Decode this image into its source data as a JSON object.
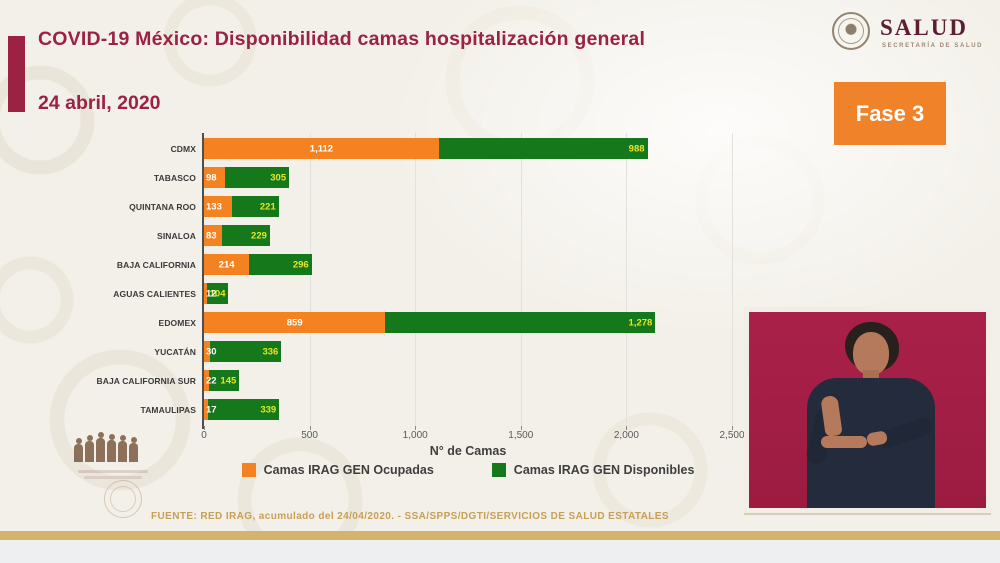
{
  "header": {
    "title": "COVID-19 México: Disponibilidad camas hospitalización general",
    "date": "24 abril, 2020",
    "phase_badge": "Fase 3",
    "logo": {
      "name": "SALUD",
      "subtitle": "SECRETARÍA DE SALUD"
    }
  },
  "chart_data": {
    "type": "bar",
    "orientation": "horizontal",
    "stacked": true,
    "categories": [
      "CDMX",
      "TABASCO",
      "QUINTANA ROO",
      "SINALOA",
      "BAJA CALIFORNIA",
      "AGUAS CALIENTES",
      "EDOMEX",
      "YUCATÁN",
      "BAJA CALIFORNIA SUR",
      "TAMAULIPAS"
    ],
    "series": [
      {
        "name": "Camas IRAG GEN Ocupadas",
        "color": "#F58220",
        "values": [
          1112,
          98,
          133,
          83,
          214,
          12,
          859,
          30,
          22,
          17
        ],
        "labels": [
          "1,112",
          "98",
          "133",
          "83",
          "214",
          "12",
          "859",
          "30",
          "22",
          "17"
        ]
      },
      {
        "name": "Camas IRAG GEN Disponibles",
        "color": "#15791B",
        "values": [
          988,
          305,
          221,
          229,
          296,
          104,
          1278,
          336,
          145,
          339
        ],
        "labels": [
          "988",
          "305",
          "221",
          "229",
          "296",
          "104",
          "1,278",
          "336",
          "145",
          "339"
        ]
      }
    ],
    "xlabel": "N° de Camas",
    "xlim": [
      0,
      2500
    ],
    "xticks": [
      "0",
      "500",
      "1,000",
      "1,500",
      "2,000",
      "2,500"
    ],
    "grid": true,
    "legend_position": "bottom",
    "value_label_colors": {
      "ocupadas": "#FFFFFF",
      "disponibles": "#E9E427"
    }
  },
  "footer": {
    "source": "FUENTE: RED IRAG, acumulado del 24/04/2020. -  SSA/SPPS/DGTI/SERVICIOS DE SALUD ESTATALES"
  },
  "colors": {
    "title_maroon": "#9B2242",
    "slide_background": "#F3F0E9",
    "phase_badge_orange": "#F08329",
    "gold_bar": "#D4B36F",
    "source_text_gold": "#C79F55",
    "interpreter_panel_crimson": "#A11D45"
  }
}
